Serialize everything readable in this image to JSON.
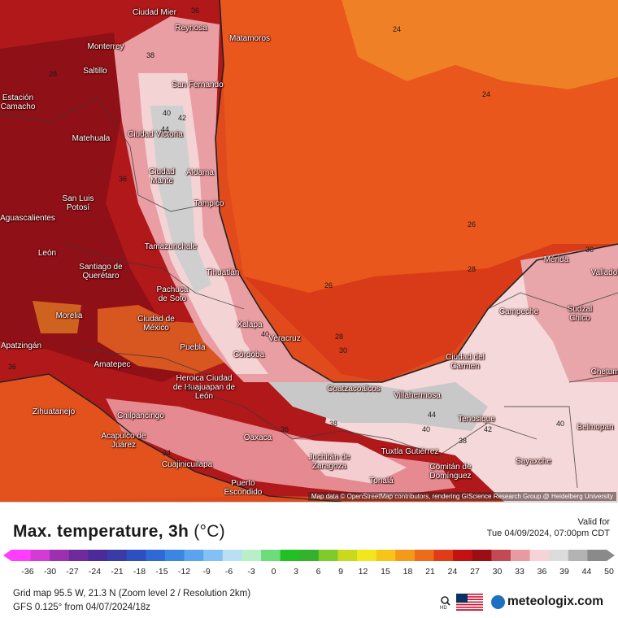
{
  "map": {
    "attribution": "Map data © OpenStreetMap contributors, rendering GIScience Research Group @ Heidelberg University",
    "cities": [
      "Ciudad Mier",
      "Reynosa",
      "Matamoros",
      "Monterrey",
      "Saltillo",
      "Estación Camacho",
      "San Fernando",
      "Matehuala",
      "Ciudad Victoria",
      "Ciudad Mante",
      "Aldama",
      "San Luis Potosí",
      "Tampico",
      "Aguascalientes",
      "León",
      "Santiago de Querétaro",
      "Tamazunchale",
      "Tihuatlán",
      "Pachuca de Soto",
      "Morelia",
      "Ciudad de México",
      "Xalapa",
      "Veracruz",
      "Puebla",
      "Córdoba",
      "Apatzingán",
      "Amatepec",
      "Heroica Ciudad de Huajuapan de León",
      "Zihuatanejo",
      "Chilpancingo",
      "Acapulco de Juárez",
      "Cuajinicuilapa",
      "Oaxaca",
      "Puerto Escondido",
      "Juchitán de Zaragoza",
      "Tonalá",
      "Tuxtla Gutiérrez",
      "Comitán de Domínguez",
      "Coatzacoalcos",
      "Villahermosa",
      "Tenosique",
      "Ciudad del Carmen",
      "Campeche",
      "Mérida",
      "Sudzal Chico",
      "Chetumal",
      "Belmopan",
      "Sayaxche",
      "Valladolid"
    ],
    "isotherm_labels": [
      "36",
      "24",
      "38",
      "28",
      "40",
      "42",
      "44",
      "36",
      "24",
      "26",
      "26",
      "28",
      "28",
      "30",
      "36",
      "40",
      "44",
      "38",
      "36",
      "34",
      "40",
      "42",
      "38",
      "36",
      "36",
      "40"
    ]
  },
  "footer": {
    "title": "Max. temperature, 3h",
    "unit": "(°C)",
    "valid_label": "Valid for",
    "valid_time": "Tue 04/09/2024, 07:00pm CDT",
    "grid_info": "Grid map 95.5 W, 21.3 N (Zoom level 2 / Resolution 2km)",
    "model_info": "GFS 0.125° from  04/07/2024/18z",
    "brand": "meteologix.com",
    "hd_label": "HD"
  },
  "legend": {
    "ticks": [
      "-36",
      "-30",
      "-27",
      "-24",
      "-21",
      "-18",
      "-15",
      "-12",
      "-9",
      "-6",
      "-3",
      "0",
      "3",
      "6",
      "9",
      "12",
      "15",
      "18",
      "21",
      "24",
      "27",
      "30",
      "33",
      "36",
      "39",
      "44",
      "50"
    ],
    "colors": [
      "#ff3dff",
      "#d23bd6",
      "#9d2fb0",
      "#6f2a9e",
      "#4c2a9a",
      "#3b3ba8",
      "#2e4fbf",
      "#2f6ad4",
      "#3b86e3",
      "#5aa3ee",
      "#83c0f4",
      "#b9dff5",
      "#b7f0c8",
      "#6fdc7a",
      "#22c025",
      "#35b22c",
      "#7ecb2a",
      "#c9d91e",
      "#f2e61c",
      "#f7c51a",
      "#f39a1a",
      "#ec6c1a",
      "#e03c17",
      "#c21212",
      "#9b0f14",
      "#c24a55",
      "#e89aa1",
      "#f6d3d6",
      "#dcdcdc",
      "#b3b3b3",
      "#8a8a8a"
    ]
  }
}
